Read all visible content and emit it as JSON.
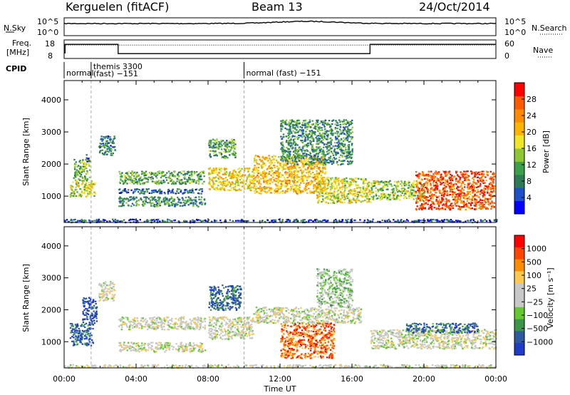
{
  "header": {
    "station": "Kerguelen (fitACF)",
    "beam": "Beam 13",
    "date": "24/Oct/2014"
  },
  "nsky_panel": {
    "left_label": "N.Sky",
    "right_label": "N.Search",
    "left_ticks": [
      "10^5",
      "10^0"
    ],
    "right_ticks": [
      "10^5",
      "10^0"
    ]
  },
  "freq_panel": {
    "left_label_1": "Freq.",
    "left_label_2": "[MHz]",
    "right_label": "Nave",
    "left_ticks": [
      "18",
      "8"
    ],
    "right_ticks": [
      "60",
      "0"
    ],
    "freq_segments": [
      {
        "t0": 0.0,
        "t1": 0.05,
        "value": 11
      },
      {
        "t0": 0.05,
        "t1": 3.0,
        "value": 15.6
      },
      {
        "t0": 3.0,
        "t1": 17.0,
        "value": 10.6
      },
      {
        "t0": 17.0,
        "t1": 24.0,
        "value": 15.6
      }
    ],
    "nave_value": 0.72
  },
  "cpid_panel": {
    "label": "CPID",
    "segments": [
      {
        "t0": 0.0,
        "t1": 1.5,
        "text1": "normal",
        "text2": ""
      },
      {
        "t0": 1.5,
        "t1": 10.0,
        "text1": "themis 3300",
        "text2": "(fast) −151"
      },
      {
        "t0": 10.0,
        "t1": 24.0,
        "text1": "normal (fast) −151",
        "text2": ""
      }
    ]
  },
  "chart_data": [
    {
      "type": "heatmap",
      "parameter": "power",
      "ylabel": "Slant Range [km]",
      "yticks": [
        1000,
        2000,
        3000,
        4000
      ],
      "ylim": [
        180,
        4600
      ],
      "xlim": [
        0,
        24
      ],
      "colorbar": {
        "label": "Power [dB]",
        "ticks": [
          "4",
          "8",
          "12",
          "16",
          "20",
          "24",
          "28"
        ],
        "colors": [
          "#0000ff",
          "#1e50c8",
          "#2d7a55",
          "#3ca04a",
          "#8cc832",
          "#f0e628",
          "#ffb400",
          "#ff8c00",
          "#ff5a00",
          "#ff0000"
        ]
      },
      "echo_regions": [
        {
          "t0": 0.3,
          "t1": 1.7,
          "r0": 1000,
          "r1": 1500,
          "level": 0.5
        },
        {
          "t0": 0.5,
          "t1": 1.4,
          "r0": 1500,
          "r1": 2200,
          "level": 0.4
        },
        {
          "t0": 1.2,
          "t1": 1.4,
          "r0": 2100,
          "r1": 2350,
          "level": 0.1
        },
        {
          "t0": 1.9,
          "t1": 2.8,
          "r0": 2300,
          "r1": 2900,
          "level": 0.25
        },
        {
          "t0": 3.0,
          "t1": 7.8,
          "r0": 1400,
          "r1": 1800,
          "level": 0.35
        },
        {
          "t0": 3.0,
          "t1": 7.8,
          "r0": 700,
          "r1": 1000,
          "level": 0.3
        },
        {
          "t0": 3.0,
          "t1": 7.8,
          "r0": 1100,
          "r1": 1250,
          "level": 0.2
        },
        {
          "t0": 8.0,
          "t1": 10.5,
          "r0": 1200,
          "r1": 1900,
          "level": 0.6
        },
        {
          "t0": 8.0,
          "t1": 9.5,
          "r0": 2200,
          "r1": 2800,
          "level": 0.35
        },
        {
          "t0": 10.5,
          "t1": 14.5,
          "r0": 1100,
          "r1": 2300,
          "level": 0.65
        },
        {
          "t0": 12.0,
          "t1": 16.0,
          "r0": 2000,
          "r1": 3400,
          "level": 0.3
        },
        {
          "t0": 14.0,
          "t1": 17.0,
          "r0": 800,
          "r1": 1600,
          "level": 0.55
        },
        {
          "t0": 17.0,
          "t1": 20.0,
          "r0": 900,
          "r1": 1500,
          "level": 0.45
        },
        {
          "t0": 19.5,
          "t1": 23.9,
          "r0": 600,
          "r1": 1800,
          "level": 0.85
        },
        {
          "t0": 0.0,
          "t1": 24.0,
          "r0": 200,
          "r1": 300,
          "level": 0.15
        }
      ]
    },
    {
      "type": "heatmap",
      "parameter": "velocity",
      "ylabel": "Slant Range [km]",
      "yticks": [
        1000,
        2000,
        3000,
        4000
      ],
      "ylim": [
        180,
        4600
      ],
      "xlim": [
        0,
        24
      ],
      "xticks": [
        "00:00",
        "04:00",
        "08:00",
        "12:00",
        "16:00",
        "20:00",
        "00:00"
      ],
      "xlabel": "Time UT",
      "colorbar": {
        "label": "Velocity [m s⁻¹]",
        "ticks": [
          "1000",
          "500",
          "100",
          "25",
          "−25",
          "−100",
          "−500",
          "−1000"
        ],
        "colors": [
          "#ff0000",
          "#ff4600",
          "#ff8c00",
          "#ffc850",
          "#c8c8c8",
          "#c8c8c8",
          "#64c832",
          "#3c964a",
          "#2d5aa0",
          "#1e3cc8"
        ]
      },
      "echo_regions": [
        {
          "t0": 0.3,
          "t1": 1.6,
          "r0": 900,
          "r1": 1600,
          "level": 0.85
        },
        {
          "t0": 1.0,
          "t1": 1.8,
          "r0": 1600,
          "r1": 2400,
          "level": 0.95
        },
        {
          "t0": 1.9,
          "t1": 2.8,
          "r0": 2300,
          "r1": 2900,
          "level": 0.5
        },
        {
          "t0": 3.0,
          "t1": 7.8,
          "r0": 1400,
          "r1": 1800,
          "level": 0.5
        },
        {
          "t0": 3.0,
          "t1": 7.8,
          "r0": 700,
          "r1": 1000,
          "level": 0.5
        },
        {
          "t0": 8.0,
          "t1": 9.8,
          "r0": 2000,
          "r1": 2800,
          "level": 0.85
        },
        {
          "t0": 8.0,
          "t1": 10.5,
          "r0": 1100,
          "r1": 1800,
          "level": 0.5
        },
        {
          "t0": 10.5,
          "t1": 16.5,
          "r0": 1600,
          "r1": 2100,
          "level": 0.5
        },
        {
          "t0": 12.0,
          "t1": 15.0,
          "r0": 500,
          "r1": 1600,
          "level": 0.2
        },
        {
          "t0": 14.0,
          "t1": 16.0,
          "r0": 2100,
          "r1": 3300,
          "level": 0.6
        },
        {
          "t0": 17.0,
          "t1": 24.0,
          "r0": 800,
          "r1": 1400,
          "level": 0.5
        },
        {
          "t0": 19.0,
          "t1": 23.0,
          "r0": 1300,
          "r1": 1600,
          "level": 0.85
        },
        {
          "t0": 0.0,
          "t1": 24.0,
          "r0": 200,
          "r1": 300,
          "level": 0.5
        }
      ]
    }
  ]
}
